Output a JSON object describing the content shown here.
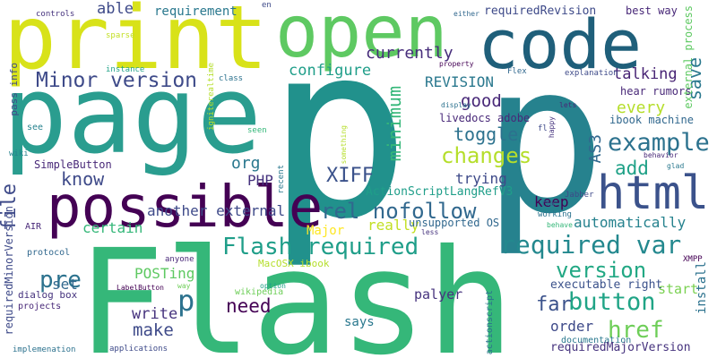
{
  "words": [
    {
      "text": "Flash",
      "color": "#35b779"
    },
    {
      "text": "p",
      "color": "#21918c"
    },
    {
      "text": "p",
      "color": "#26828e"
    },
    {
      "text": "page",
      "color": "#2a9d8f"
    },
    {
      "text": "print",
      "color": "#d8e219"
    },
    {
      "text": "open",
      "color": "#5ec962"
    },
    {
      "text": "code",
      "color": "#1f5f7a"
    },
    {
      "text": "possible",
      "color": "#440154"
    },
    {
      "text": "html",
      "color": "#3b528b"
    },
    {
      "text": "Flash required",
      "color": "#1f9e89"
    },
    {
      "text": "required var",
      "color": "#23888e"
    },
    {
      "text": "Minor version",
      "color": "#3e4a89"
    },
    {
      "text": "example",
      "color": "#2c728e"
    },
    {
      "text": "rel nofollow",
      "color": "#31688e"
    },
    {
      "text": "button",
      "color": "#20a486"
    },
    {
      "text": "version",
      "color": "#22a884"
    },
    {
      "text": "href",
      "color": "#6ece58"
    },
    {
      "text": "XIFF",
      "color": "#3b528b"
    },
    {
      "text": "changes",
      "color": "#b5de2b"
    },
    {
      "text": "configure",
      "color": "#1f9e89"
    },
    {
      "text": "currently",
      "color": "#472d7b"
    },
    {
      "text": "REVISION",
      "color": "#2a788e"
    },
    {
      "text": "good",
      "color": "#482878"
    },
    {
      "text": "toggle",
      "color": "#2c728e"
    },
    {
      "text": "talking",
      "color": "#482475"
    },
    {
      "text": "save",
      "color": "#2a788e"
    },
    {
      "text": "minimum",
      "color": "#35b779"
    },
    {
      "text": "know",
      "color": "#3e4a89"
    },
    {
      "text": "org",
      "color": "#2a788e"
    },
    {
      "text": "file",
      "color": "#3e4a89"
    },
    {
      "text": "PHP",
      "color": "#46337e"
    },
    {
      "text": "AS3",
      "color": "#31688e"
    },
    {
      "text": "add",
      "color": "#1fa187"
    },
    {
      "text": "every",
      "color": "#b5de2b"
    },
    {
      "text": "keep",
      "color": "#440154"
    },
    {
      "text": "trying",
      "color": "#3e4a89"
    },
    {
      "text": "automatically",
      "color": "#26828e"
    },
    {
      "text": "certain",
      "color": "#35b779"
    },
    {
      "text": "another external",
      "color": "#3e4a89"
    },
    {
      "text": "Major",
      "color": "#fde725"
    },
    {
      "text": "really",
      "color": "#c2df23"
    },
    {
      "text": "unsupported OS",
      "color": "#31688e"
    },
    {
      "text": "p",
      "color": "#2c728e"
    },
    {
      "text": "pre",
      "color": "#2c728e"
    },
    {
      "text": "make",
      "color": "#3e4a89"
    },
    {
      "text": "need",
      "color": "#440154"
    },
    {
      "text": "write",
      "color": "#46337e"
    },
    {
      "text": "set",
      "color": "#31688e"
    },
    {
      "text": "POSTing",
      "color": "#5ec962"
    },
    {
      "text": "far",
      "color": "#3b528b"
    },
    {
      "text": "order",
      "color": "#3e4a89"
    },
    {
      "text": "palyer",
      "color": "#46337e"
    },
    {
      "text": "says",
      "color": "#2a788e"
    },
    {
      "text": "start",
      "color": "#7ad151"
    },
    {
      "text": "install",
      "color": "#2c728e"
    },
    {
      "text": "executable right",
      "color": "#3b528b"
    },
    {
      "text": "documentation",
      "color": "#2a788e"
    },
    {
      "text": "requiredMajorVersion",
      "color": "#46337e"
    },
    {
      "text": "requiredRevision",
      "color": "#3e4a89"
    },
    {
      "text": "best way",
      "color": "#482878"
    },
    {
      "text": "requirement",
      "color": "#2a788e"
    },
    {
      "text": "able",
      "color": "#3e4a89"
    },
    {
      "text": "ActionScriptLangRefV3",
      "color": "#1f9e89"
    },
    {
      "text": "livedocs adobe",
      "color": "#482878"
    },
    {
      "text": "ibook machine",
      "color": "#31688e"
    },
    {
      "text": "hear rumors",
      "color": "#482878"
    },
    {
      "text": "explanation",
      "color": "#3e4a89"
    },
    {
      "text": "external process",
      "color": "#5ec962"
    },
    {
      "text": "SimpleButton",
      "color": "#482878"
    },
    {
      "text": "requiredMinorVersion",
      "color": "#3e4a89"
    },
    {
      "text": "dialog box",
      "color": "#46337e"
    },
    {
      "text": "pass info",
      "color": "#3e4a89"
    },
    {
      "text": "MacOSX ibook",
      "color": "#b5de2b"
    },
    {
      "text": "wikipedia",
      "color": "#6ece58"
    },
    {
      "text": "anyone",
      "color": "#482878"
    },
    {
      "text": "XMPP",
      "color": "#440154"
    },
    {
      "text": "protocol",
      "color": "#31688e"
    },
    {
      "text": "projects",
      "color": "#482878"
    },
    {
      "text": "implemenation",
      "color": "#2c728e"
    },
    {
      "text": "applications",
      "color": "#3e4a89"
    },
    {
      "text": "actionscript",
      "color": "#2c728e"
    },
    {
      "text": "LabelButton",
      "color": "#440154"
    },
    {
      "text": "way",
      "color": "#6ece58"
    },
    {
      "text": "option",
      "color": "#1fa187"
    },
    {
      "text": "recent",
      "color": "#2a788e"
    },
    {
      "text": "seen",
      "color": "#35b779"
    },
    {
      "text": "see",
      "color": "#26828e"
    },
    {
      "text": "AIR",
      "color": "#482878"
    },
    {
      "text": "wiki",
      "color": "#26828e"
    },
    {
      "text": "igniterealtime",
      "color": "#b5de2b"
    },
    {
      "text": "class",
      "color": "#2c728e"
    },
    {
      "text": "instance",
      "color": "#1fa187"
    },
    {
      "text": "sparse",
      "color": "#c2df23"
    },
    {
      "text": "controls",
      "color": "#46337e"
    },
    {
      "text": "en",
      "color": "#3e4a89"
    },
    {
      "text": "either",
      "color": "#31688e"
    },
    {
      "text": "property",
      "color": "#440154"
    },
    {
      "text": "Flex",
      "color": "#31688e"
    },
    {
      "text": "display",
      "color": "#2c728e"
    },
    {
      "text": "lets",
      "color": "#482878"
    },
    {
      "text": "something",
      "color": "#b5de2b"
    },
    {
      "text": "fl",
      "color": "#3e4a89"
    },
    {
      "text": "happy",
      "color": "#46337e"
    },
    {
      "text": "behavior",
      "color": "#482878"
    },
    {
      "text": "glad",
      "color": "#2a788e"
    },
    {
      "text": "Jabber",
      "color": "#3e4a89"
    },
    {
      "text": "fla",
      "color": "#31688e"
    },
    {
      "text": "working",
      "color": "#2c728e"
    },
    {
      "text": "behave",
      "color": "#35b779"
    },
    {
      "text": "less",
      "color": "#46337e"
    }
  ]
}
